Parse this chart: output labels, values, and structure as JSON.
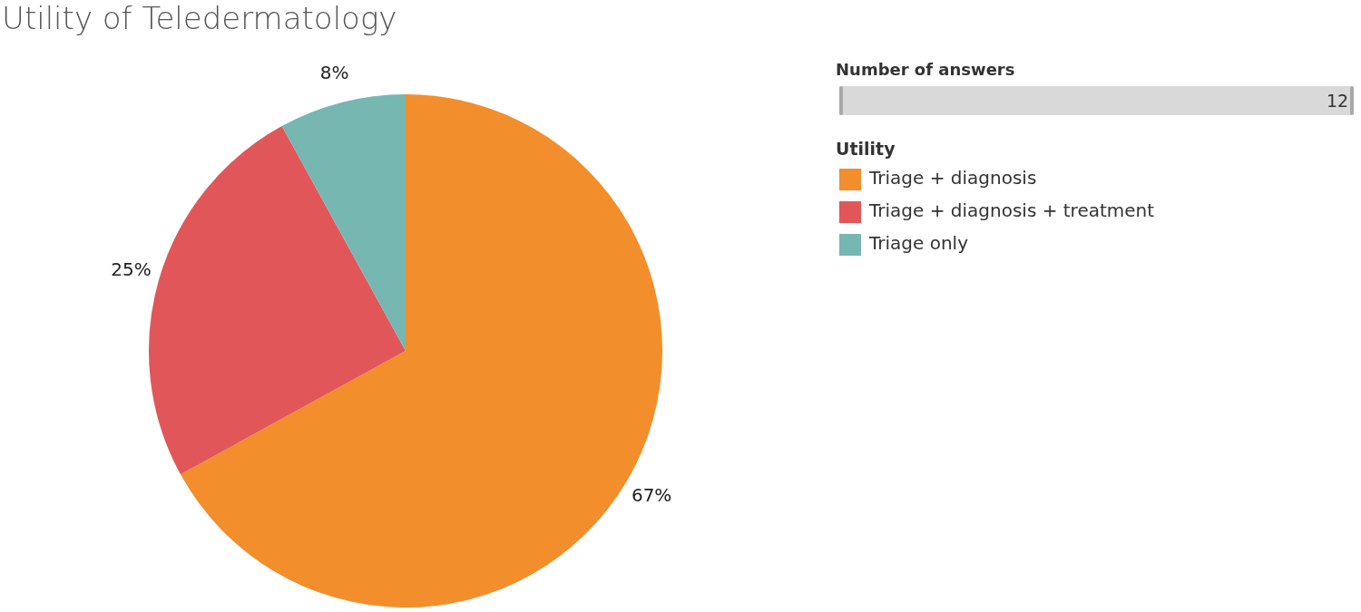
{
  "chart_data": {
    "type": "pie",
    "title": "Utility of Teledermatology",
    "legend_title": "Utility",
    "legend": "top right",
    "categories": [
      "Triage + diagnosis",
      "Triage + diagnosis + treatment",
      "Triage only"
    ],
    "values": [
      67,
      25,
      8
    ],
    "colors": [
      "#f28e2b",
      "#e15759",
      "#76b7b2"
    ],
    "value_labels": [
      "67%",
      "25%",
      "8%"
    ],
    "annotations": [
      "Number of answers",
      "12"
    ]
  }
}
